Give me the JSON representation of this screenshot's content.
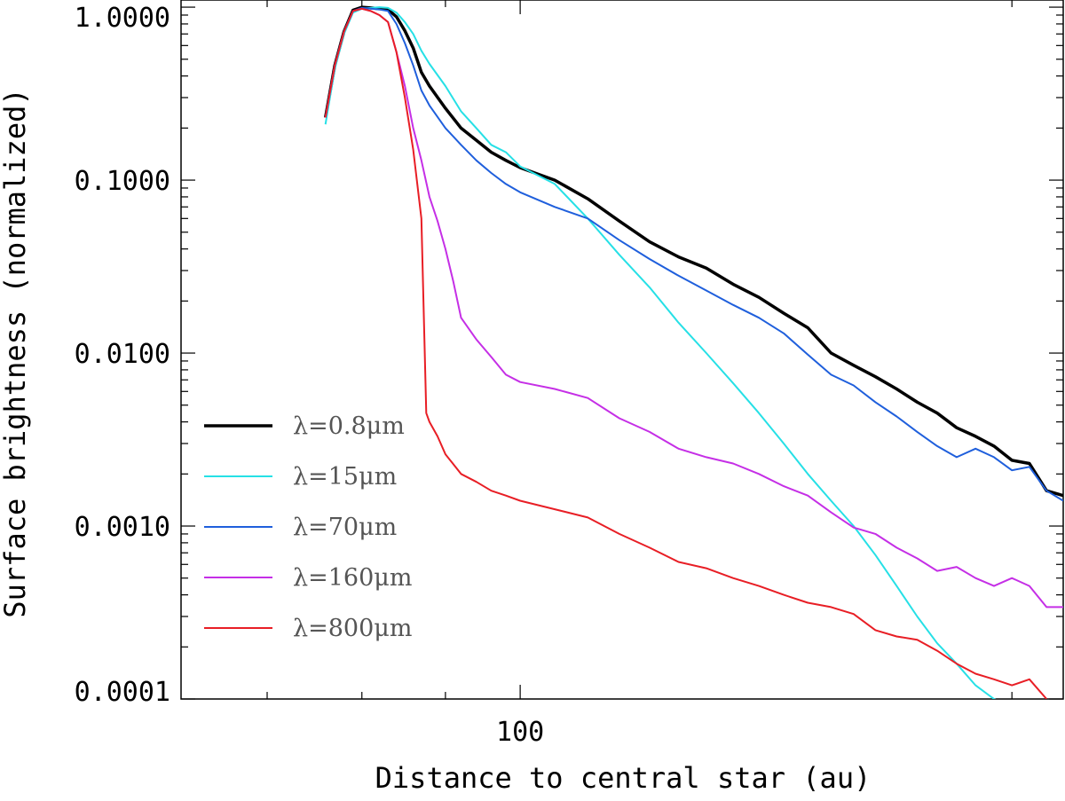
{
  "chart_data": {
    "type": "line",
    "title": "",
    "xlabel": "Distance to central star (au)",
    "ylabel": "Surface brightness (normalized)",
    "xscale": "log",
    "yscale": "log",
    "xlim": [
      62,
      215
    ],
    "ylim": [
      0.0001,
      1.1
    ],
    "grid": false,
    "legend_position": "lower-left",
    "x_tick_labels": [
      {
        "value": 100,
        "label": "100"
      }
    ],
    "y_tick_labels": [
      {
        "value": 1.0,
        "label": "1.0000"
      },
      {
        "value": 0.1,
        "label": "0.1000"
      },
      {
        "value": 0.01,
        "label": "0.0100"
      },
      {
        "value": 0.001,
        "label": "0.0010"
      },
      {
        "value": 0.0001,
        "label": "0.0001"
      }
    ],
    "series": [
      {
        "name": "λ=0.8μm",
        "color": "#000000",
        "width": 3.5,
        "x": [
          76,
          77,
          78,
          79,
          80,
          81,
          82,
          83,
          84,
          85,
          86,
          87,
          88,
          90,
          92,
          94,
          96,
          98,
          100,
          105,
          110,
          115,
          120,
          125,
          130,
          135,
          140,
          145,
          150,
          155,
          160,
          165,
          170,
          175,
          180,
          185,
          190,
          195,
          200,
          205,
          210,
          215
        ],
        "y": [
          0.23,
          0.46,
          0.72,
          0.96,
          1.0,
          0.99,
          0.98,
          0.97,
          0.88,
          0.73,
          0.58,
          0.42,
          0.35,
          0.26,
          0.2,
          0.17,
          0.145,
          0.13,
          0.118,
          0.1,
          0.078,
          0.058,
          0.044,
          0.036,
          0.031,
          0.025,
          0.021,
          0.017,
          0.014,
          0.01,
          0.0085,
          0.0073,
          0.0062,
          0.0052,
          0.0045,
          0.0037,
          0.0033,
          0.0029,
          0.0024,
          0.0023,
          0.0016,
          0.0015
        ]
      },
      {
        "name": "λ=15μm",
        "color": "#26e0e6",
        "width": 2,
        "x": [
          76,
          77,
          78,
          79,
          80,
          81,
          82,
          83,
          84,
          85,
          86,
          87,
          88,
          90,
          92,
          94,
          96,
          98,
          100,
          105,
          110,
          115,
          120,
          125,
          130,
          135,
          140,
          145,
          150,
          155,
          160,
          165,
          170,
          175,
          180,
          185,
          190,
          195,
          200,
          205,
          210
        ],
        "y": [
          0.21,
          0.44,
          0.7,
          0.93,
          0.98,
          0.99,
          1.0,
          0.99,
          0.93,
          0.82,
          0.7,
          0.56,
          0.47,
          0.35,
          0.25,
          0.2,
          0.16,
          0.145,
          0.12,
          0.095,
          0.06,
          0.037,
          0.024,
          0.015,
          0.01,
          0.0067,
          0.0045,
          0.003,
          0.002,
          0.0014,
          0.001,
          0.00068,
          0.00045,
          0.0003,
          0.00021,
          0.00016,
          0.00012,
          0.0001,
          9e-05,
          8e-05,
          7e-05
        ]
      },
      {
        "name": "λ=70μm",
        "color": "#1f5fdc",
        "width": 2,
        "x": [
          76,
          77,
          78,
          79,
          80,
          81,
          82,
          83,
          84,
          85,
          86,
          87,
          88,
          90,
          92,
          94,
          96,
          98,
          100,
          105,
          110,
          115,
          120,
          125,
          130,
          135,
          140,
          145,
          150,
          155,
          160,
          165,
          170,
          175,
          180,
          185,
          190,
          195,
          200,
          205,
          210,
          215
        ],
        "y": [
          0.23,
          0.46,
          0.72,
          0.95,
          0.99,
          0.98,
          0.97,
          0.95,
          0.8,
          0.62,
          0.46,
          0.33,
          0.27,
          0.2,
          0.16,
          0.13,
          0.11,
          0.095,
          0.085,
          0.07,
          0.06,
          0.045,
          0.035,
          0.028,
          0.023,
          0.019,
          0.016,
          0.013,
          0.0098,
          0.0075,
          0.0065,
          0.0052,
          0.0043,
          0.0035,
          0.0029,
          0.0025,
          0.0028,
          0.0025,
          0.0021,
          0.0022,
          0.0016,
          0.0014
        ]
      },
      {
        "name": "λ=160μm",
        "color": "#c52fe6",
        "width": 2,
        "x": [
          76,
          77,
          78,
          79,
          80,
          81,
          82,
          83,
          84,
          85,
          86,
          87,
          88,
          89,
          90,
          91,
          92,
          94,
          96,
          98,
          100,
          105,
          110,
          115,
          120,
          125,
          130,
          135,
          140,
          145,
          150,
          155,
          160,
          165,
          170,
          175,
          180,
          185,
          190,
          195,
          200,
          205,
          210,
          215
        ],
        "y": [
          0.23,
          0.46,
          0.72,
          0.95,
          0.98,
          0.95,
          0.9,
          0.82,
          0.55,
          0.35,
          0.2,
          0.13,
          0.08,
          0.058,
          0.04,
          0.026,
          0.016,
          0.012,
          0.0095,
          0.0075,
          0.0068,
          0.0062,
          0.0055,
          0.0042,
          0.0035,
          0.0028,
          0.0025,
          0.0023,
          0.002,
          0.0017,
          0.0015,
          0.0012,
          0.00098,
          0.0009,
          0.00075,
          0.00065,
          0.00055,
          0.00058,
          0.0005,
          0.00045,
          0.0005,
          0.00045,
          0.00034,
          0.00034
        ]
      },
      {
        "name": "λ=800μm",
        "color": "#e81e25",
        "width": 2,
        "x": [
          76,
          77,
          78,
          79,
          80,
          81,
          82,
          83,
          84,
          85,
          86,
          87,
          87.6,
          88,
          89,
          90,
          92,
          94,
          96,
          98,
          100,
          105,
          110,
          115,
          120,
          125,
          130,
          135,
          140,
          145,
          150,
          155,
          160,
          165,
          170,
          175,
          180,
          185,
          190,
          195,
          200,
          205,
          210
        ],
        "y": [
          0.23,
          0.46,
          0.72,
          0.95,
          0.98,
          0.95,
          0.9,
          0.82,
          0.55,
          0.3,
          0.15,
          0.06,
          0.0045,
          0.004,
          0.0033,
          0.0026,
          0.002,
          0.0018,
          0.0016,
          0.0015,
          0.0014,
          0.00125,
          0.00112,
          0.0009,
          0.00075,
          0.00062,
          0.00057,
          0.0005,
          0.00045,
          0.0004,
          0.00036,
          0.00034,
          0.00031,
          0.00025,
          0.00023,
          0.00022,
          0.00019,
          0.00016,
          0.00014,
          0.00013,
          0.00012,
          0.00013,
          0.0001
        ]
      }
    ]
  }
}
